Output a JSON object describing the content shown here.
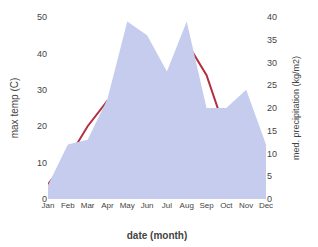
{
  "chart_data": {
    "type": "line",
    "categories": [
      "Jan",
      "Feb",
      "Mar",
      "Apr",
      "May",
      "Jun",
      "Jul",
      "Aug",
      "Sep",
      "Oct",
      "Nov",
      "Dec"
    ],
    "xlabel": "date (month)",
    "ylabel": "max temp (C)",
    "y2label": "med. precipitation (kg/m2)",
    "series": [
      {
        "type": "area",
        "axis": "y2",
        "color": "#c5ccee",
        "values": [
          3,
          12,
          13,
          22,
          39,
          36,
          28,
          39,
          20,
          20,
          24,
          12
        ]
      },
      {
        "type": "line",
        "color": "#b03040",
        "values": [
          4,
          11,
          20,
          27,
          27,
          29,
          34,
          43,
          34,
          18,
          10,
          10
        ]
      }
    ],
    "ylim": [
      0,
      50
    ],
    "yticks": [
      0,
      10,
      20,
      30,
      40,
      50
    ],
    "y2lim": [
      0,
      40
    ],
    "y2ticks": [
      0,
      5,
      10,
      15,
      20,
      25,
      30,
      35,
      40
    ],
    "grid": false
  }
}
